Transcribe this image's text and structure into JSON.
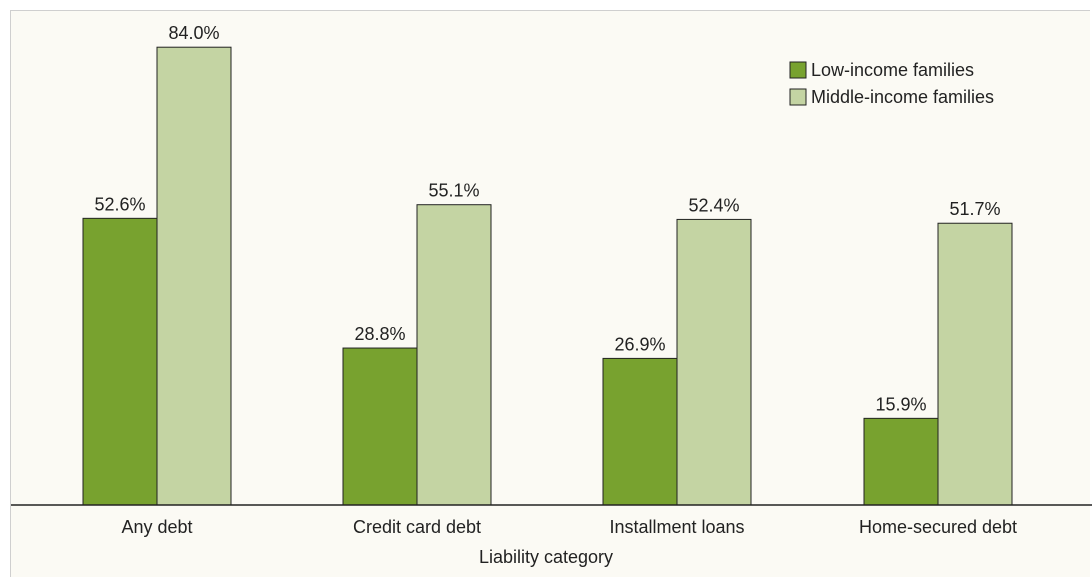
{
  "chart_data": {
    "type": "bar",
    "categories": [
      "Any debt",
      "Credit card debt",
      "Installment loans",
      "Home-secured debt"
    ],
    "series": [
      {
        "name": "Low-income families",
        "values": [
          52.6,
          28.8,
          26.9,
          15.9
        ],
        "labels": [
          "52.6%",
          "28.8%",
          "26.9%",
          "15.9%"
        ],
        "color": "#78a22f"
      },
      {
        "name": "Middle-income families",
        "values": [
          84.0,
          55.1,
          52.4,
          51.7
        ],
        "labels": [
          "84.0%",
          "55.1%",
          "52.4%",
          "51.7%"
        ],
        "color": "#c4d4a3"
      }
    ],
    "title": "",
    "xlabel": "Liability category",
    "ylabel": "",
    "ylim": [
      0,
      100
    ],
    "grid": false,
    "legend_position": "top-right",
    "background": "#fbfaf4",
    "border_color": "#222222"
  }
}
